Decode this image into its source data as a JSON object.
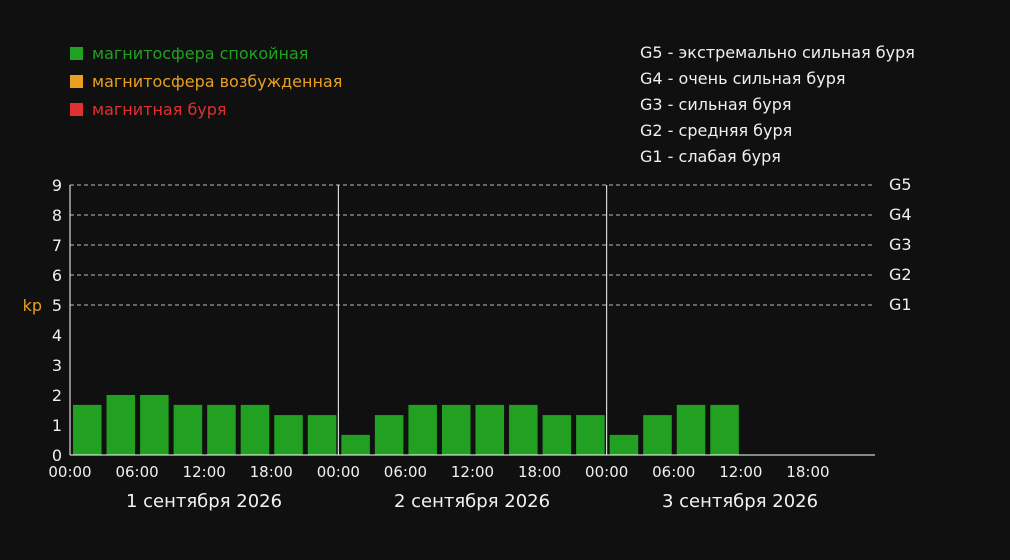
{
  "legend": [
    {
      "label": "магнитосфера спокойная",
      "color": "#22a022"
    },
    {
      "label": "магнитосфера возбужденная",
      "color": "#e8a020"
    },
    {
      "label": "магнитная буря",
      "color": "#e03030"
    }
  ],
  "storm_levels": [
    "G5 - экстремально сильная буря",
    "G4 - очень сильная буря",
    "G3 - сильная буря",
    "G2 - средняя буря",
    "G1 - слабая буря"
  ],
  "chart_data": {
    "type": "bar",
    "ylabel": "kp",
    "ylim": [
      0,
      9
    ],
    "y_ticks": [
      "0",
      "1",
      "2",
      "3",
      "4",
      "5",
      "6",
      "7",
      "8",
      "9"
    ],
    "right_ticks": [
      {
        "value": 5,
        "label": "G1"
      },
      {
        "value": 6,
        "label": "G2"
      },
      {
        "value": 7,
        "label": "G3"
      },
      {
        "value": 8,
        "label": "G4"
      },
      {
        "value": 9,
        "label": "G5"
      }
    ],
    "x_tick_labels": [
      "00:00",
      "06:00",
      "12:00",
      "18:00",
      "00:00",
      "06:00",
      "12:00",
      "18:00",
      "00:00",
      "06:00",
      "12:00",
      "18:00"
    ],
    "days": [
      "1 сентября 2026",
      "2 сентября 2026",
      "3 сентября 2026"
    ],
    "slots_per_day": 8,
    "values": [
      1.67,
      2,
      2,
      1.67,
      1.67,
      1.67,
      1.33,
      1.33,
      0.67,
      1.33,
      1.67,
      1.67,
      1.67,
      1.67,
      1.33,
      1.33,
      0.67,
      1.33,
      1.67,
      1.67
    ],
    "bar_color": "#22a022",
    "label_color": "#e8a020"
  }
}
